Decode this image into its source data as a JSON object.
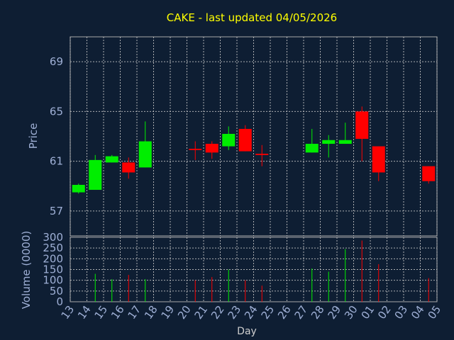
{
  "chart_data": {
    "type": "candlestick",
    "title": "CAKE - last updated 04/05/2026",
    "xlabel": "Day",
    "price_ylabel": "Price",
    "volume_ylabel": "Volume (0000)",
    "price_ylim": [
      55,
      71
    ],
    "price_yticks": [
      "57",
      "61",
      "65",
      "69"
    ],
    "volume_ylim": [
      0,
      300
    ],
    "volume_yticks": [
      "0",
      "50",
      "100",
      "150",
      "200",
      "250",
      "300"
    ],
    "x_labels": [
      "13",
      "14",
      "15",
      "16",
      "17",
      "18",
      "19",
      "20",
      "21",
      "22",
      "23",
      "24",
      "25",
      "26",
      "27",
      "28",
      "29",
      "30",
      "01",
      "02",
      "03",
      "04",
      "05"
    ],
    "colors": {
      "up": "#00ee00",
      "down": "#ff0000",
      "title": "#ffff00",
      "background": "#0e1e33"
    },
    "candles": [
      {
        "day": "13",
        "open": 58.5,
        "high": 59.2,
        "low": 58.4,
        "close": 59.1,
        "volume": 0
      },
      {
        "day": "14",
        "open": 58.7,
        "high": 61.5,
        "low": 58.7,
        "close": 61.1,
        "volume": 130
      },
      {
        "day": "15",
        "open": 60.9,
        "high": 61.5,
        "low": 60.9,
        "close": 61.4,
        "volume": 105
      },
      {
        "day": "16",
        "open": 60.9,
        "high": 61.3,
        "low": 59.6,
        "close": 60.1,
        "volume": 125
      },
      {
        "day": "17",
        "open": 60.5,
        "high": 64.2,
        "low": 60.5,
        "close": 62.6,
        "volume": 105
      },
      {
        "day": "20",
        "open": 62.0,
        "high": 62.6,
        "low": 61.1,
        "close": 61.9,
        "volume": 100
      },
      {
        "day": "21",
        "open": 62.4,
        "high": 62.6,
        "low": 61.2,
        "close": 61.7,
        "volume": 115
      },
      {
        "day": "22",
        "open": 62.2,
        "high": 63.8,
        "low": 61.9,
        "close": 63.2,
        "volume": 150
      },
      {
        "day": "23",
        "open": 63.6,
        "high": 63.9,
        "low": 61.8,
        "close": 61.8,
        "volume": 100
      },
      {
        "day": "24",
        "open": 61.6,
        "high": 62.3,
        "low": 60.6,
        "close": 61.5,
        "volume": 75
      },
      {
        "day": "27",
        "open": 61.7,
        "high": 63.6,
        "low": 61.7,
        "close": 62.4,
        "volume": 155
      },
      {
        "day": "28",
        "open": 62.4,
        "high": 63.1,
        "low": 61.3,
        "close": 62.7,
        "volume": 140
      },
      {
        "day": "29",
        "open": 62.4,
        "high": 64.1,
        "low": 62.4,
        "close": 62.7,
        "volume": 245
      },
      {
        "day": "30",
        "open": 65.0,
        "high": 65.4,
        "low": 61.0,
        "close": 62.8,
        "volume": 285
      },
      {
        "day": "01",
        "open": 62.2,
        "high": 62.2,
        "low": 59.4,
        "close": 60.1,
        "volume": 175
      },
      {
        "day": "04",
        "open": 60.6,
        "high": 60.6,
        "low": 59.2,
        "close": 59.4,
        "volume": 110
      }
    ]
  }
}
